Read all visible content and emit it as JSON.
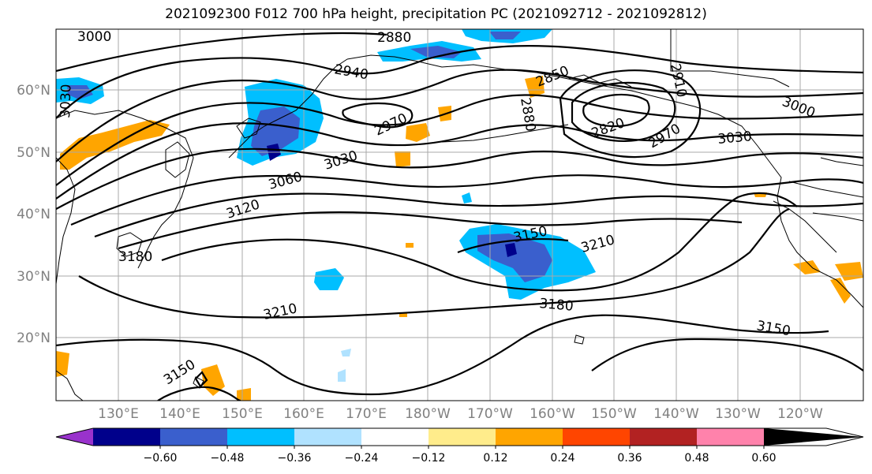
{
  "title": "2021092300 F012 700 hPa height, precipitation PC (2021092712 - 2021092812)",
  "lat_labels": [
    "60°N",
    "50°N",
    "40°N",
    "30°N",
    "20°N"
  ],
  "lon_labels": [
    "130°E",
    "140°E",
    "150°E",
    "160°E",
    "170°E",
    "180°W",
    "170°W",
    "160°W",
    "150°W",
    "140°W",
    "130°W",
    "120°W"
  ],
  "contour_labels": {
    "c3000a": "3000",
    "c3030a": "3030",
    "c2880a": "2880",
    "c2940": "2940",
    "c2970a": "2970",
    "c2850": "2850",
    "c2880b": "2880",
    "c2910": "2910",
    "c2820": "2820",
    "c2970b": "2970",
    "c3000b": "3000",
    "c3030b": "3030",
    "c3030c": "3030",
    "c3060": "3060",
    "c3120": "3120",
    "c3180a": "3180",
    "c3150a": "3150",
    "c3210a": "3210",
    "c3180b": "3180",
    "c3210b": "3210",
    "c3150b": "3150",
    "c3150c": "3150"
  },
  "colorbar": {
    "ticks": [
      "−0.60",
      "−0.48",
      "−0.36",
      "−0.24",
      "−0.12",
      "0.12",
      "0.24",
      "0.36",
      "0.48",
      "0.60"
    ],
    "colors": [
      "#9932cc",
      "#00008b",
      "#3a5fcd",
      "#00bfff",
      "#b0e2ff",
      "#ffffff",
      "#ffec8b",
      "#ffa500",
      "#ff4500",
      "#b22222",
      "#ff82ab"
    ]
  }
}
